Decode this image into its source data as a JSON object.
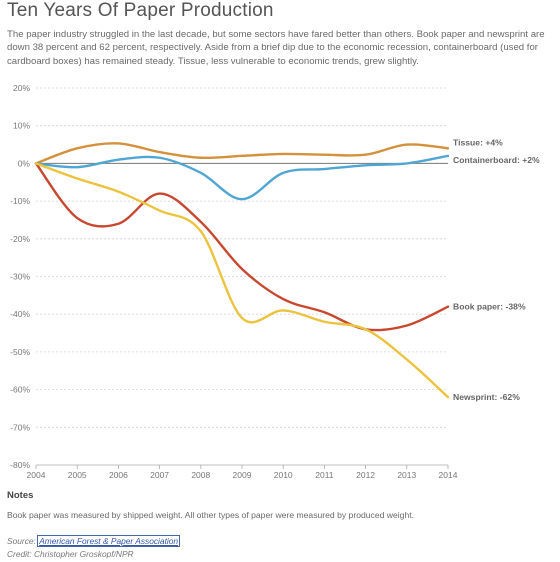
{
  "header": {
    "title": "Ten Years Of Paper Production",
    "subtitle": "The paper industry struggled in the last decade, but some sectors have fared better than others. Book paper and newsprint are down 38 percent and 62 percent, respectively. Aside from a brief dip due to the economic recession, containerboard (used for cardboard boxes) has remained steady. Tissue, less vulnerable to economic trends, grew slightly."
  },
  "chart_data": {
    "type": "line",
    "title": "Ten Years Of Paper Production",
    "xlabel": "",
    "ylabel": "",
    "x": [
      2004,
      2005,
      2006,
      2007,
      2008,
      2009,
      2010,
      2011,
      2012,
      2013,
      2014
    ],
    "ylim": [
      -80,
      20
    ],
    "y_ticks": [
      20,
      10,
      0,
      -10,
      -20,
      -30,
      -40,
      -50,
      -60,
      -70,
      -80
    ],
    "y_tick_labels": [
      "20%",
      "10%",
      "0%",
      "-10%",
      "-20%",
      "-30%",
      "-40%",
      "-50%",
      "-60%",
      "-70%",
      "-80%"
    ],
    "x_tick_labels": [
      "2004",
      "2005",
      "2006",
      "2007",
      "2008",
      "2009",
      "2010",
      "2011",
      "2012",
      "2013",
      "2014"
    ],
    "grid": "horizontal-dashed",
    "legend": "direct labels at line ends",
    "series": [
      {
        "name": "Tissue",
        "label": "Tissue: +4%",
        "color": "#d4903a",
        "values": [
          0,
          4,
          5.3,
          3,
          1.5,
          2,
          2.5,
          2.3,
          2.3,
          5,
          4
        ]
      },
      {
        "name": "Containerboard",
        "label": "Containerboard: +2%",
        "color": "#4fa6d4",
        "values": [
          0,
          -1,
          1,
          1.5,
          -2.5,
          -9.5,
          -2.5,
          -1.5,
          -0.5,
          0,
          2
        ]
      },
      {
        "name": "Book paper",
        "label": "Book paper: -38%",
        "color": "#c9472f",
        "values": [
          0,
          -14.5,
          -16,
          -8,
          -15.5,
          -28,
          -36,
          -39.5,
          -44,
          -43,
          -38
        ]
      },
      {
        "name": "Newsprint",
        "label": "Newsprint: -62%",
        "color": "#ecc33e",
        "values": [
          0,
          -4,
          -7.5,
          -12.5,
          -18,
          -41,
          -39,
          -42,
          -44,
          -52,
          -62
        ]
      }
    ]
  },
  "notes": {
    "heading": "Notes",
    "text": "Book paper was measured by shipped weight. All other types of paper were measured by produced weight."
  },
  "source": {
    "label": "Source:",
    "link_text": "American Forest & Paper Association"
  },
  "credit": "Credit: Christopher Groskopf/NPR"
}
